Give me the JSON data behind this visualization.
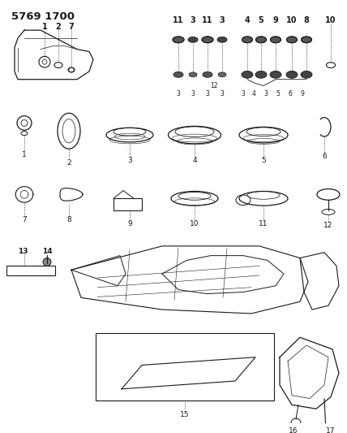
{
  "title_part1": "5769",
  "title_part2": "1700",
  "background_color": "#ffffff",
  "line_color": "#1a1a1a",
  "figsize": [
    4.28,
    5.33
  ],
  "dpi": 100
}
